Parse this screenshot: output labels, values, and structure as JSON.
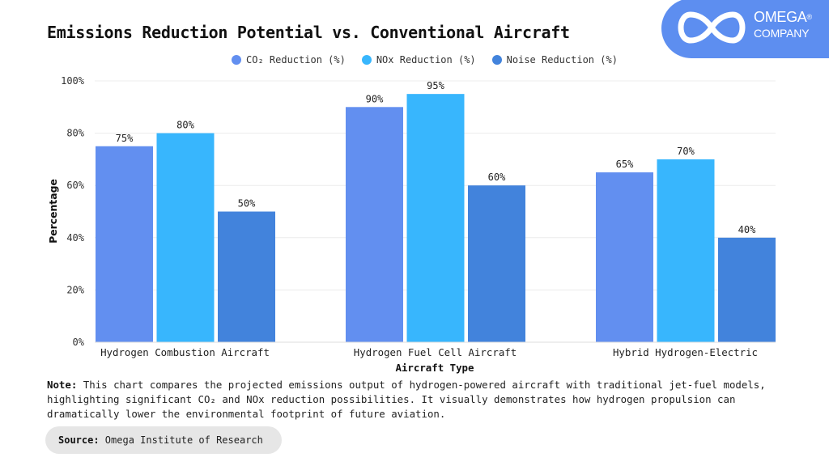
{
  "header": {
    "title": "Emissions Reduction Potential vs. Conventional Aircraft"
  },
  "logo": {
    "icon": "infinity-icon",
    "brand": "OMEGA",
    "registered": "®",
    "sub": "COMPANY",
    "color": "#5d8ef0"
  },
  "note": {
    "label": "Note:",
    "text": " This chart compares the projected emissions output of hydrogen-powered aircraft with traditional jet-fuel models, highlighting significant CO₂ and NOx reduction possibilities. It visually demonstrates how hydrogen propulsion can dramatically lower the environmental footprint of future aviation."
  },
  "source": {
    "label": "Source:",
    "text": " Omega Institute of Research"
  },
  "chart_data": {
    "type": "bar",
    "title": "Emissions Reduction Potential vs. Conventional Aircraft",
    "xlabel": "Aircraft Type",
    "ylabel": "Percentage",
    "ylim": [
      0,
      100
    ],
    "yticks": [
      0,
      20,
      40,
      60,
      80,
      100
    ],
    "ytick_labels": [
      "0%",
      "20%",
      "40%",
      "60%",
      "80%",
      "100%"
    ],
    "grid": true,
    "legend_position": "top-center",
    "categories": [
      "Hydrogen Combustion Aircraft",
      "Hydrogen Fuel Cell Aircraft",
      "Hybrid Hydrogen-Electric"
    ],
    "series": [
      {
        "name": "CO₂ Reduction (%)",
        "color": "#628ff0",
        "values": [
          75,
          90,
          65
        ]
      },
      {
        "name": "NOx Reduction (%)",
        "color": "#38b6fd",
        "values": [
          80,
          95,
          70
        ]
      },
      {
        "name": "Noise Reduction (%)",
        "color": "#4283dc",
        "values": [
          50,
          60,
          40
        ]
      }
    ],
    "value_label_suffix": "%"
  }
}
